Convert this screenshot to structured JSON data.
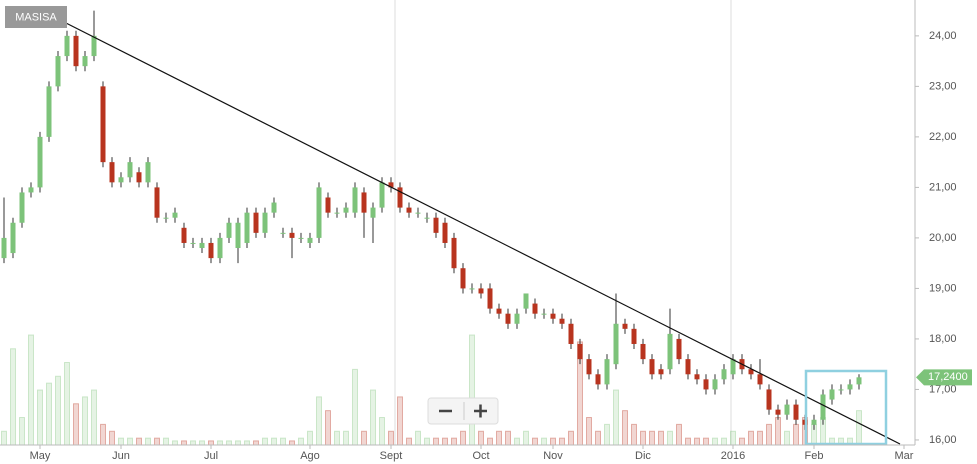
{
  "chart_data": {
    "type": "candlestick",
    "title": "MASISA",
    "categories": [
      null,
      null,
      null,
      null,
      "May",
      null,
      null,
      null,
      null,
      null,
      null,
      null,
      null,
      "Jun",
      null,
      null,
      null,
      null,
      null,
      null,
      null,
      null,
      null,
      "Jul",
      null,
      null,
      null,
      null,
      null,
      null,
      null,
      null,
      null,
      null,
      "Ago",
      null,
      null,
      null,
      null,
      null,
      null,
      null,
      null,
      "Sept",
      null,
      null,
      null,
      null,
      null,
      null,
      null,
      null,
      null,
      "Oct",
      null,
      null,
      null,
      null,
      null,
      null,
      null,
      "Nov",
      null,
      null,
      null,
      null,
      null,
      null,
      null,
      null,
      null,
      "Dic",
      null,
      null,
      null,
      null,
      null,
      null,
      null,
      null,
      null,
      "2016",
      null,
      null,
      null,
      null,
      null,
      null,
      null,
      null,
      "Feb",
      null,
      null,
      null,
      null,
      null,
      null,
      null,
      null,
      null,
      "Mar"
    ],
    "open": [
      19.6,
      19.7,
      20.3,
      20.9,
      21.0,
      22.0,
      23.0,
      23.6,
      24.0,
      23.4,
      23.6,
      23.0,
      21.5,
      21.1,
      21.2,
      21.3,
      21.1,
      21.0,
      20.4,
      20.4,
      20.2,
      19.9,
      19.8,
      19.9,
      19.6,
      20.0,
      19.8,
      19.9,
      20.5,
      20.1,
      20.5,
      20.1,
      20.1,
      20.0,
      19.9,
      20.0,
      20.8,
      20.5,
      20.5,
      20.5,
      20.9,
      20.4,
      20.6,
      21.1,
      21.0,
      20.6,
      20.5,
      20.4,
      20.4,
      20.3,
      20.0,
      19.4,
      19.0,
      19.0,
      19.0,
      18.6,
      18.5,
      18.3,
      18.6,
      18.7,
      18.5,
      18.5,
      18.4,
      18.3,
      17.9,
      17.6,
      17.3,
      17.1,
      17.5,
      18.3,
      18.2,
      17.9,
      17.6,
      17.4,
      17.4,
      18.0,
      17.6,
      17.3,
      17.2,
      17.0,
      17.2,
      17.3,
      17.6,
      17.4,
      17.3,
      17.0,
      16.6,
      16.5,
      16.7,
      16.4,
      16.3,
      16.4,
      16.8,
      17.0,
      17.0,
      17.1,
      null,
      null,
      null,
      null,
      null
    ],
    "high": [
      20.8,
      20.4,
      21.0,
      21.1,
      22.1,
      23.1,
      23.7,
      24.1,
      24.1,
      23.7,
      24.5,
      23.1,
      21.6,
      21.3,
      21.6,
      21.4,
      21.6,
      21.1,
      20.5,
      20.6,
      20.3,
      20.0,
      20.0,
      20.0,
      20.1,
      20.4,
      20.4,
      20.6,
      20.6,
      20.6,
      20.8,
      20.2,
      20.2,
      20.1,
      20.1,
      21.1,
      20.9,
      20.6,
      20.7,
      21.1,
      21.0,
      20.7,
      21.2,
      21.2,
      21.1,
      20.7,
      20.6,
      20.5,
      20.5,
      20.4,
      20.1,
      19.5,
      19.1,
      19.1,
      19.1,
      18.7,
      18.6,
      18.6,
      18.9,
      18.8,
      18.6,
      18.6,
      18.5,
      18.4,
      18.0,
      17.7,
      17.4,
      17.7,
      18.9,
      18.4,
      18.3,
      18.0,
      17.7,
      17.5,
      18.6,
      18.1,
      17.7,
      17.4,
      17.3,
      17.3,
      17.5,
      17.7,
      17.7,
      17.5,
      17.6,
      17.1,
      16.7,
      16.8,
      16.8,
      16.5,
      16.5,
      17.0,
      17.1,
      17.1,
      17.2,
      17.3,
      null,
      null,
      null,
      null,
      null
    ],
    "low": [
      19.5,
      19.6,
      20.2,
      20.8,
      20.9,
      21.9,
      22.9,
      23.5,
      23.3,
      23.3,
      23.5,
      21.4,
      21.0,
      21.0,
      21.1,
      21.0,
      21.0,
      20.3,
      20.3,
      20.3,
      19.8,
      19.8,
      19.7,
      19.5,
      19.5,
      19.9,
      19.5,
      19.8,
      20.0,
      20.0,
      20.4,
      20.0,
      19.6,
      19.9,
      19.8,
      19.9,
      20.4,
      20.4,
      20.4,
      20.4,
      20.0,
      19.9,
      20.5,
      20.9,
      20.5,
      20.4,
      20.4,
      20.3,
      20.0,
      19.8,
      19.3,
      18.9,
      18.9,
      18.8,
      18.5,
      18.4,
      18.2,
      18.2,
      18.5,
      18.4,
      18.4,
      18.3,
      18.2,
      17.8,
      17.5,
      17.2,
      17.0,
      17.0,
      17.4,
      18.1,
      17.8,
      17.5,
      17.2,
      17.2,
      17.3,
      17.5,
      17.2,
      17.1,
      16.9,
      16.9,
      17.1,
      17.2,
      17.3,
      17.2,
      17.0,
      16.5,
      16.4,
      16.4,
      16.3,
      16.2,
      16.2,
      16.3,
      16.7,
      16.9,
      16.9,
      17.0,
      null,
      null,
      null,
      null,
      null
    ],
    "close": [
      20.0,
      20.3,
      20.9,
      21.0,
      22.0,
      23.0,
      23.6,
      24.0,
      23.4,
      23.6,
      24.0,
      21.5,
      21.1,
      21.2,
      21.5,
      21.1,
      21.5,
      20.4,
      20.4,
      20.5,
      19.9,
      19.9,
      19.9,
      19.6,
      20.0,
      20.3,
      20.3,
      20.5,
      20.1,
      20.5,
      20.7,
      20.1,
      20.0,
      20.0,
      20.0,
      21.0,
      20.5,
      20.5,
      20.6,
      21.0,
      20.5,
      20.6,
      21.1,
      21.0,
      20.6,
      20.5,
      20.5,
      20.4,
      20.1,
      19.9,
      19.4,
      19.0,
      19.0,
      18.9,
      18.6,
      18.5,
      18.3,
      18.5,
      18.9,
      18.5,
      18.5,
      18.4,
      18.3,
      17.9,
      17.6,
      17.3,
      17.1,
      17.6,
      18.3,
      18.2,
      17.9,
      17.6,
      17.3,
      17.3,
      18.1,
      17.6,
      17.3,
      17.2,
      17.0,
      17.2,
      17.4,
      17.6,
      17.4,
      17.3,
      17.1,
      16.6,
      16.5,
      16.7,
      16.4,
      16.3,
      16.4,
      16.9,
      17.0,
      17.0,
      17.1,
      17.24,
      null,
      null,
      null,
      null,
      null
    ],
    "volume": [
      10,
      70,
      20,
      80,
      40,
      45,
      50,
      60,
      30,
      35,
      40,
      15,
      10,
      5,
      5,
      5,
      5,
      5,
      5,
      3,
      3,
      3,
      3,
      3,
      3,
      3,
      3,
      3,
      3,
      5,
      5,
      5,
      3,
      5,
      10,
      35,
      25,
      10,
      10,
      55,
      10,
      40,
      20,
      10,
      35,
      5,
      10,
      5,
      5,
      5,
      5,
      10,
      80,
      10,
      5,
      10,
      10,
      5,
      10,
      5,
      5,
      5,
      5,
      10,
      75,
      20,
      10,
      15,
      40,
      25,
      15,
      10,
      10,
      10,
      10,
      15,
      5,
      5,
      5,
      5,
      5,
      10,
      5,
      10,
      10,
      15,
      20,
      10,
      15,
      20,
      15,
      20,
      5,
      5,
      5,
      25,
      null,
      null,
      null,
      null,
      null
    ],
    "up_color": "#7dc37a",
    "down_color": "#b8341f",
    "ylim": [
      15.9,
      24.71
    ],
    "yticks": [
      {
        "value": 16,
        "label": "16,00"
      },
      {
        "value": 17,
        "label": "17,00"
      },
      {
        "value": 18,
        "label": "18,00"
      },
      {
        "value": 19,
        "label": "19,00"
      },
      {
        "value": 20,
        "label": "20,00"
      },
      {
        "value": 21,
        "label": "21,00"
      },
      {
        "value": 22,
        "label": "22,00"
      },
      {
        "value": 23,
        "label": "23,00"
      },
      {
        "value": 24,
        "label": "24,00"
      }
    ],
    "last_price": {
      "value": 17.24,
      "label": "17,2400"
    }
  }
}
